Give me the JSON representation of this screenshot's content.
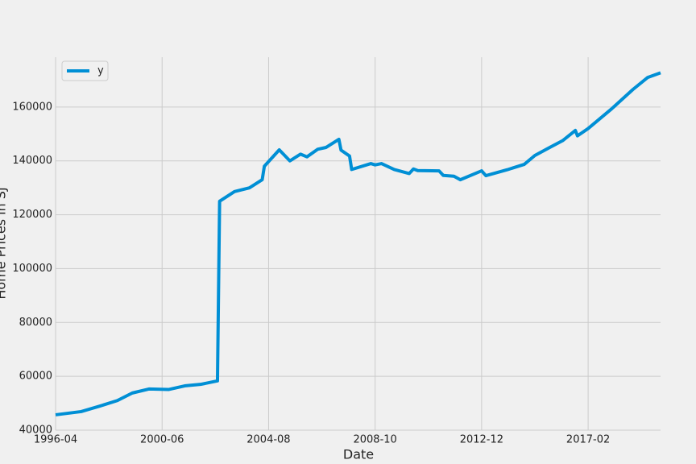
{
  "chart_data": {
    "type": "line",
    "x_label": "Date",
    "y_label": "Home Prices in SJ",
    "x": [
      "1996-04",
      "1997-04",
      "1998-01",
      "1998-09",
      "1999-04",
      "1999-12",
      "2000-09",
      "2001-05",
      "2001-12",
      "2002-08",
      "2002-09",
      "2003-04",
      "2003-11",
      "2004-05",
      "2004-06",
      "2005-01",
      "2005-06",
      "2005-11",
      "2006-02",
      "2006-07",
      "2006-11",
      "2007-05",
      "2007-06",
      "2007-10",
      "2007-11",
      "2008-08",
      "2008-10",
      "2009-01",
      "2009-07",
      "2010-02",
      "2010-04",
      "2010-06",
      "2011-04",
      "2011-06",
      "2011-11",
      "2012-02",
      "2012-12",
      "2013-02",
      "2013-12",
      "2014-08",
      "2015-01",
      "2015-08",
      "2016-02",
      "2016-08",
      "2016-09",
      "2017-02",
      "2018-01",
      "2018-11",
      "2019-06",
      "2019-12"
    ],
    "series": [
      {
        "name": "y",
        "color": "#008fd5",
        "values": [
          45700,
          46900,
          49000,
          51000,
          53800,
          55300,
          55100,
          56500,
          57000,
          58300,
          125000,
          128600,
          130000,
          133000,
          138000,
          144100,
          140000,
          142500,
          141500,
          144300,
          145000,
          148000,
          144000,
          141800,
          136800,
          139000,
          138500,
          139000,
          136800,
          135300,
          137000,
          136400,
          136300,
          134600,
          134300,
          133000,
          136300,
          134500,
          136700,
          138700,
          142000,
          145000,
          147500,
          151300,
          149300,
          152000,
          159300,
          166500,
          171000,
          172700
        ]
      }
    ],
    "xlim": [
      "1996-04",
      "2019-12"
    ],
    "xticks": [
      "1996-04",
      "2000-06",
      "2004-08",
      "2008-10",
      "2012-12",
      "2017-02"
    ],
    "ylim": [
      40000,
      178500
    ],
    "yticks": [
      40000,
      60000,
      80000,
      100000,
      120000,
      140000,
      160000
    ],
    "grid": true,
    "legend": "upper left"
  }
}
